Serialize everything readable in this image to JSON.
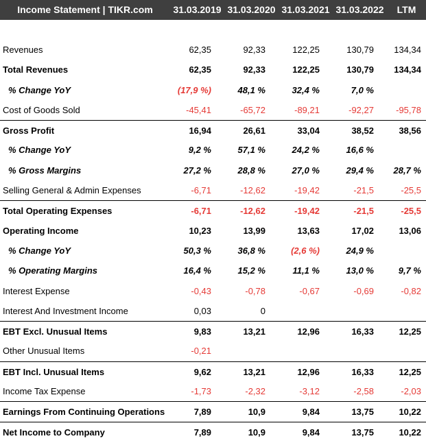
{
  "header": {
    "title": "Income Statement | TIKR.com",
    "columns": [
      "31.03.2019",
      "31.03.2020",
      "31.03.2021",
      "31.03.2022",
      "LTM"
    ]
  },
  "colors": {
    "header_bg": "#3f3f3f",
    "negative": "#e53935"
  },
  "rows": [
    {
      "label": "Revenues",
      "style": "normal",
      "values": [
        "62,35",
        "92,33",
        "122,25",
        "130,79",
        "134,34"
      ]
    },
    {
      "label": "Total Revenues",
      "style": "bold",
      "values": [
        "62,35",
        "92,33",
        "122,25",
        "130,79",
        "134,34"
      ]
    },
    {
      "label": "% Change YoY",
      "style": "italic",
      "values": [
        "(17,9 %)",
        "48,1 %",
        "32,4 %",
        "7,0 %",
        ""
      ]
    },
    {
      "label": "Cost of Goods Sold",
      "style": "normal",
      "values": [
        "-45,41",
        "-65,72",
        "-89,21",
        "-92,27",
        "-95,78"
      ]
    },
    {
      "label": "Gross Profit",
      "style": "bold",
      "border": true,
      "values": [
        "16,94",
        "26,61",
        "33,04",
        "38,52",
        "38,56"
      ]
    },
    {
      "label": "% Change YoY",
      "style": "italic",
      "values": [
        "9,2 %",
        "57,1 %",
        "24,2 %",
        "16,6 %",
        ""
      ]
    },
    {
      "label": "% Gross Margins",
      "style": "italic",
      "values": [
        "27,2 %",
        "28,8 %",
        "27,0 %",
        "29,4 %",
        "28,7 %"
      ]
    },
    {
      "label": "Selling General & Admin Expenses",
      "style": "normal",
      "values": [
        "-6,71",
        "-12,62",
        "-19,42",
        "-21,5",
        "-25,5"
      ]
    },
    {
      "label": "Total Operating Expenses",
      "style": "bold",
      "border": true,
      "values": [
        "-6,71",
        "-12,62",
        "-19,42",
        "-21,5",
        "-25,5"
      ]
    },
    {
      "label": "Operating Income",
      "style": "bold",
      "values": [
        "10,23",
        "13,99",
        "13,63",
        "17,02",
        "13,06"
      ]
    },
    {
      "label": "% Change YoY",
      "style": "italic",
      "values": [
        "50,3 %",
        "36,8 %",
        "(2,6 %)",
        "24,9 %",
        ""
      ]
    },
    {
      "label": "% Operating Margins",
      "style": "italic",
      "values": [
        "16,4 %",
        "15,2 %",
        "11,1 %",
        "13,0 %",
        "9,7 %"
      ]
    },
    {
      "label": "Interest Expense",
      "style": "normal",
      "values": [
        "-0,43",
        "-0,78",
        "-0,67",
        "-0,69",
        "-0,82"
      ]
    },
    {
      "label": "Interest And Investment Income",
      "style": "normal",
      "values": [
        "0,03",
        "0",
        "",
        "",
        ""
      ]
    },
    {
      "label": "EBT Excl. Unusual Items",
      "style": "bold",
      "border": true,
      "values": [
        "9,83",
        "13,21",
        "12,96",
        "16,33",
        "12,25"
      ]
    },
    {
      "label": "Other Unusual Items",
      "style": "normal",
      "values": [
        "-0,21",
        "",
        "",
        "",
        ""
      ]
    },
    {
      "label": "EBT Incl. Unusual Items",
      "style": "bold",
      "border": true,
      "values": [
        "9,62",
        "13,21",
        "12,96",
        "16,33",
        "12,25"
      ]
    },
    {
      "label": "Income Tax Expense",
      "style": "normal",
      "values": [
        "-1,73",
        "-2,32",
        "-3,12",
        "-2,58",
        "-2,03"
      ]
    },
    {
      "label": "Earnings From Continuing Operations",
      "style": "bold",
      "border": true,
      "values": [
        "7,89",
        "10,9",
        "9,84",
        "13,75",
        "10,22"
      ]
    },
    {
      "label": "Net Income to Company",
      "style": "bold",
      "border": true,
      "values": [
        "7,89",
        "10,9",
        "9,84",
        "13,75",
        "10,22"
      ]
    }
  ]
}
